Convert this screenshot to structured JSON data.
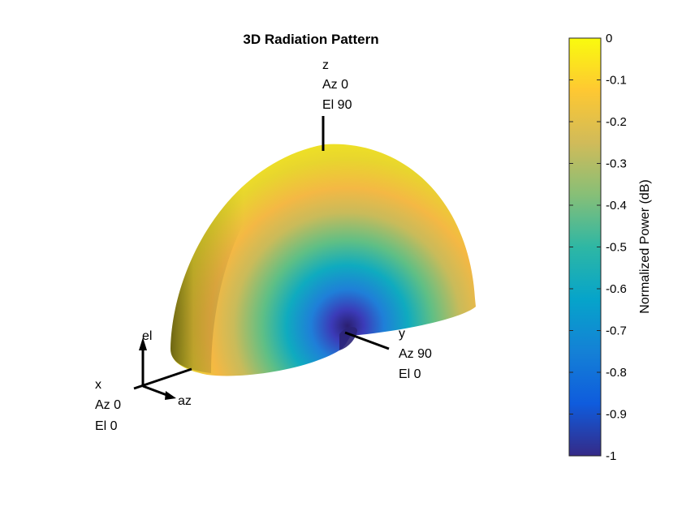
{
  "chart_data": {
    "type": "3d-surface",
    "title": "3D Radiation Pattern",
    "description_pattern": "hemispherical dome, minimum (null) along +y axis",
    "colormap": "parula",
    "colormap_stops": [
      "#352a87",
      "#0f5cdd",
      "#1481d6",
      "#06a4ca",
      "#2eb7a4",
      "#87bf77",
      "#d1bb59",
      "#fec832",
      "#f9fb0e"
    ],
    "colorbar": {
      "label": "Normalized Power (dB)",
      "clim": [
        -1,
        0
      ],
      "ticks": [
        "0",
        "-0.1",
        "-0.2",
        "-0.3",
        "-0.4",
        "-0.5",
        "-0.6",
        "-0.7",
        "-0.8",
        "-0.9",
        "-1"
      ]
    },
    "annotations": {
      "z": [
        "z",
        "Az 0",
        "El 90"
      ],
      "y": [
        "y",
        "Az 90",
        "El 0"
      ],
      "x": [
        "x",
        "Az 0",
        "El 0"
      ],
      "el": "el",
      "az": "az"
    }
  }
}
